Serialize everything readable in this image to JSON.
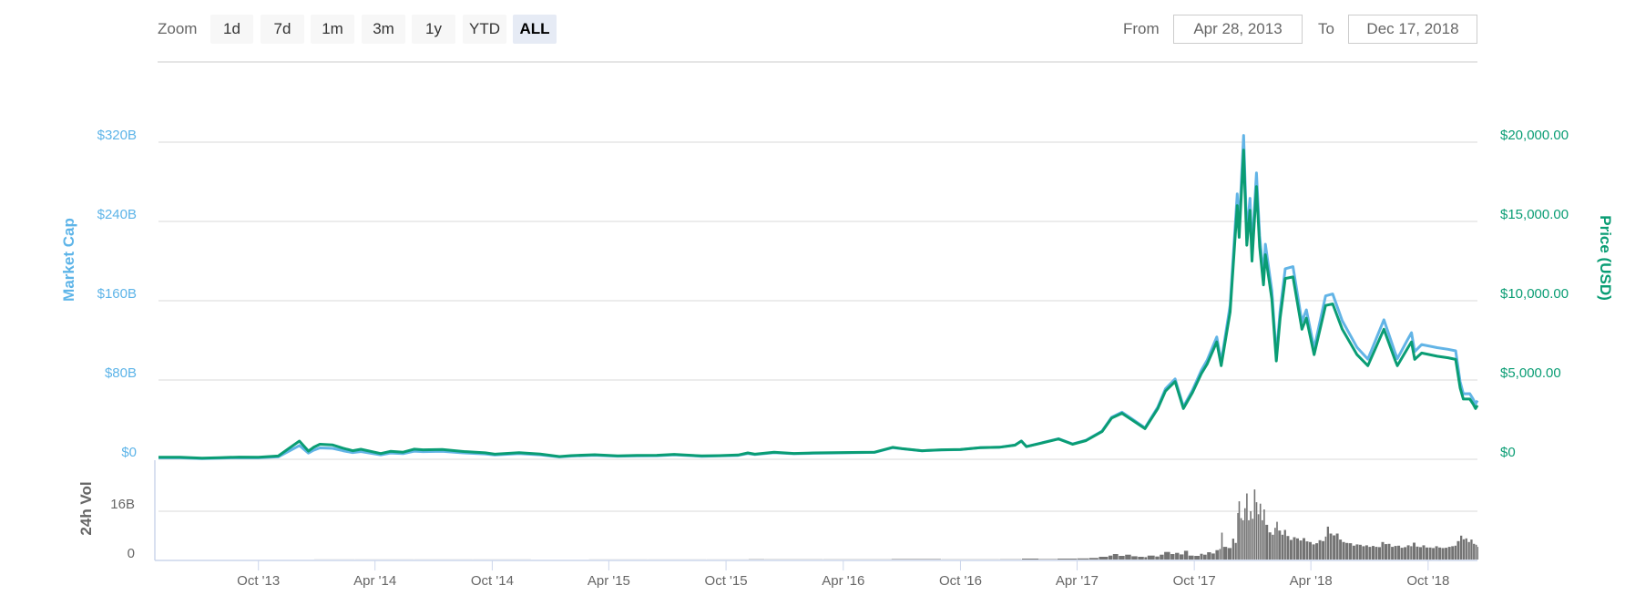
{
  "controls": {
    "zoom_label": "Zoom",
    "zoom_buttons": [
      {
        "label": "1d",
        "selected": false
      },
      {
        "label": "7d",
        "selected": false
      },
      {
        "label": "1m",
        "selected": false
      },
      {
        "label": "3m",
        "selected": false
      },
      {
        "label": "1y",
        "selected": false
      },
      {
        "label": "YTD",
        "selected": false
      },
      {
        "label": "ALL",
        "selected": true
      }
    ],
    "from_label": "From",
    "from_value": "Apr 28, 2013",
    "to_label": "To",
    "to_value": "Dec 17, 2018"
  },
  "colors": {
    "market_cap": "#62b4e6",
    "price": "#0a9d74",
    "volume": "#737373",
    "grid": "#e6e6e6",
    "axis": "#ccd6eb",
    "text": "#666666"
  },
  "chart_data": {
    "type": "line",
    "title": "",
    "xlabel": "",
    "x_range": [
      "2013-04-28",
      "2018-12-17"
    ],
    "grid": true,
    "legend": "none",
    "x_ticks": [
      {
        "date": "2013-10-01",
        "label": "Oct '13"
      },
      {
        "date": "2014-04-01",
        "label": "Apr '14"
      },
      {
        "date": "2014-10-01",
        "label": "Oct '14"
      },
      {
        "date": "2015-04-01",
        "label": "Apr '15"
      },
      {
        "date": "2015-10-01",
        "label": "Oct '15"
      },
      {
        "date": "2016-04-01",
        "label": "Apr '16"
      },
      {
        "date": "2016-10-01",
        "label": "Oct '16"
      },
      {
        "date": "2017-04-01",
        "label": "Apr '17"
      },
      {
        "date": "2017-10-01",
        "label": "Oct '17"
      },
      {
        "date": "2018-04-01",
        "label": "Apr '18"
      },
      {
        "date": "2018-10-01",
        "label": "Oct '18"
      }
    ],
    "y_axes": {
      "left": {
        "label": "Market Cap",
        "unit": "B USD",
        "ylim": [
          0,
          320
        ],
        "ticks": [
          "$0",
          "$80B",
          "$160B",
          "$240B",
          "$320B"
        ]
      },
      "right": {
        "label": "Price (USD)",
        "ylim": [
          0,
          20000
        ],
        "ticks": [
          "$0",
          "$5,000.00",
          "$10,000.00",
          "$15,000.00",
          "$20,000.00"
        ]
      },
      "volume": {
        "label": "24h Vol",
        "unit": "B USD",
        "ylim": [
          0,
          16
        ],
        "ticks": [
          "0",
          "16B"
        ]
      }
    },
    "dates": [
      "2013-04-28",
      "2013-06-01",
      "2013-07-05",
      "2013-08-01",
      "2013-09-01",
      "2013-10-01",
      "2013-11-01",
      "2013-11-18",
      "2013-12-04",
      "2013-12-18",
      "2013-12-26",
      "2014-01-05",
      "2014-01-25",
      "2014-02-10",
      "2014-02-25",
      "2014-03-10",
      "2014-04-10",
      "2014-04-25",
      "2014-05-15",
      "2014-06-01",
      "2014-06-15",
      "2014-07-15",
      "2014-08-18",
      "2014-09-20",
      "2014-10-05",
      "2014-11-12",
      "2014-12-15",
      "2015-01-14",
      "2015-02-01",
      "2015-03-10",
      "2015-04-15",
      "2015-05-15",
      "2015-06-15",
      "2015-07-12",
      "2015-08-24",
      "2015-09-20",
      "2015-10-20",
      "2015-11-04",
      "2015-11-15",
      "2015-12-15",
      "2016-01-15",
      "2016-02-15",
      "2016-03-15",
      "2016-04-15",
      "2016-05-20",
      "2016-06-17",
      "2016-07-01",
      "2016-08-02",
      "2016-09-01",
      "2016-10-01",
      "2016-11-01",
      "2016-12-01",
      "2016-12-25",
      "2017-01-04",
      "2017-01-12",
      "2017-02-01",
      "2017-03-03",
      "2017-03-25",
      "2017-04-15",
      "2017-05-10",
      "2017-05-25",
      "2017-06-10",
      "2017-06-27",
      "2017-07-16",
      "2017-08-05",
      "2017-08-17",
      "2017-09-01",
      "2017-09-14",
      "2017-09-28",
      "2017-10-12",
      "2017-10-21",
      "2017-11-05",
      "2017-11-12",
      "2017-11-26",
      "2017-12-07",
      "2017-12-10",
      "2017-12-17",
      "2017-12-22",
      "2017-12-27",
      "2017-12-30",
      "2018-01-06",
      "2018-01-11",
      "2018-01-17",
      "2018-01-20",
      "2018-01-30",
      "2018-02-06",
      "2018-02-12",
      "2018-02-20",
      "2018-03-04",
      "2018-03-18",
      "2018-03-25",
      "2018-04-06",
      "2018-04-24",
      "2018-05-05",
      "2018-05-20",
      "2018-06-12",
      "2018-06-29",
      "2018-07-24",
      "2018-08-10",
      "2018-08-14",
      "2018-08-30",
      "2018-09-05",
      "2018-09-10",
      "2018-09-21",
      "2018-10-15",
      "2018-11-01",
      "2018-11-13",
      "2018-11-20",
      "2018-11-25",
      "2018-12-05",
      "2018-12-10",
      "2018-12-14",
      "2018-12-17"
    ],
    "series": [
      {
        "name": "Market Cap",
        "axis": "left",
        "type": "line",
        "unit": "B USD",
        "values": [
          1.5,
          1.45,
          0.78,
          1.22,
          1.61,
          1.48,
          2.46,
          8.4,
          13.86,
          6.29,
          9.09,
          11.54,
          11.0,
          8.61,
          6.67,
          7.82,
          4.53,
          6.32,
          5.72,
          8.19,
          7.73,
          8.07,
          6.46,
          5.46,
          4.29,
          5.69,
          4.51,
          2.35,
          3.19,
          4.06,
          3.1,
          3.41,
          3.58,
          4.46,
          3.05,
          3.39,
          3.97,
          5.92,
          4.75,
          6.75,
          5.59,
          6.08,
          6.35,
          6.62,
          6.98,
          11.7,
          10.64,
          8.51,
          9.49,
          9.78,
          11.67,
          12.19,
          14.31,
          18.52,
          12.89,
          15.98,
          20.74,
          15.42,
          19.2,
          28.54,
          42.48,
          47.5,
          40.23,
          31.75,
          52.77,
          71.04,
          81.1,
          53.02,
          69.72,
          89.75,
          99.84,
          123.4,
          98.4,
          155.4,
          267.8,
          234.4,
          326.8,
          226.4,
          263.4,
          209.8,
          289.0,
          225.3,
          185.0,
          217.0,
          170.1,
          104.5,
          150.1,
          192.3,
          194.4,
          138.8,
          150.8,
          111.9,
          164.9,
          166.8,
          139.8,
          112.9,
          101.1,
          140.8,
          108.4,
          101.5,
          120.7,
          127.7,
          108.7,
          115.8,
          112.6,
          111.0,
          109.4,
          78.2,
          66.1,
          66.2,
          61.0,
          55.8,
          59.3
        ]
      },
      {
        "name": "Price (USD)",
        "axis": "right",
        "type": "line",
        "unit": "USD",
        "values": [
          135,
          129,
          68,
          106,
          138,
          125,
          206,
          700,
          1150,
          520,
          750,
          950,
          900,
          700,
          540,
          630,
          360,
          500,
          450,
          640,
          600,
          620,
          490,
          410,
          320,
          420,
          330,
          170,
          230,
          290,
          220,
          240,
          250,
          310,
          210,
          232,
          270,
          400,
          320,
          450,
          370,
          400,
          415,
          430,
          450,
          750,
          680,
          540,
          600,
          615,
          730,
          760,
          890,
          1150,
          800,
          990,
          1280,
          950,
          1180,
          1750,
          2600,
          2900,
          2450,
          1930,
          3200,
          4300,
          4900,
          3200,
          4200,
          5400,
          6000,
          7400,
          5900,
          9300,
          16000,
          14000,
          19500,
          13500,
          15700,
          12500,
          17200,
          13400,
          11000,
          12900,
          10100,
          6200,
          8900,
          11400,
          11500,
          8200,
          8900,
          6600,
          9700,
          9800,
          8200,
          6600,
          5900,
          8200,
          6300,
          5900,
          7000,
          7400,
          6300,
          6700,
          6500,
          6400,
          6300,
          4500,
          3800,
          3800,
          3500,
          3200,
          3400
        ]
      }
    ],
    "volume": {
      "name": "24h Vol",
      "type": "bar",
      "unit": "B USD",
      "dates": [
        "2013-04-28",
        "2013-12-27",
        "2014-03-01",
        "2014-06-01",
        "2014-09-01",
        "2014-12-01",
        "2015-03-01",
        "2015-06-01",
        "2015-09-01",
        "2015-11-05",
        "2015-12-01",
        "2016-03-01",
        "2016-06-15",
        "2016-09-01",
        "2016-12-01",
        "2017-01-05",
        "2017-02-01",
        "2017-03-01",
        "2017-04-01",
        "2017-04-20",
        "2017-05-05",
        "2017-05-20",
        "2017-05-27",
        "2017-06-05",
        "2017-06-15",
        "2017-06-25",
        "2017-07-05",
        "2017-07-15",
        "2017-07-20",
        "2017-08-01",
        "2017-08-08",
        "2017-08-15",
        "2017-08-25",
        "2017-09-01",
        "2017-09-08",
        "2017-09-15",
        "2017-09-22",
        "2017-10-01",
        "2017-10-10",
        "2017-10-15",
        "2017-10-21",
        "2017-10-28",
        "2017-11-03",
        "2017-11-09",
        "2017-11-12",
        "2017-11-15",
        "2017-11-22",
        "2017-11-29",
        "2017-12-03",
        "2017-12-07",
        "2017-12-09",
        "2017-12-12",
        "2017-12-15",
        "2017-12-18",
        "2017-12-21",
        "2017-12-24",
        "2017-12-27",
        "2017-12-30",
        "2018-01-02",
        "2018-01-05",
        "2018-01-08",
        "2018-01-11",
        "2018-01-14",
        "2018-01-17",
        "2018-01-20",
        "2018-01-25",
        "2018-01-30",
        "2018-02-03",
        "2018-02-06",
        "2018-02-09",
        "2018-02-14",
        "2018-02-18",
        "2018-02-22",
        "2018-02-27",
        "2018-03-04",
        "2018-03-09",
        "2018-03-14",
        "2018-03-19",
        "2018-03-24",
        "2018-03-29",
        "2018-04-03",
        "2018-04-08",
        "2018-04-13",
        "2018-04-18",
        "2018-04-23",
        "2018-04-26",
        "2018-04-30",
        "2018-05-05",
        "2018-05-10",
        "2018-05-15",
        "2018-05-20",
        "2018-05-25",
        "2018-05-30",
        "2018-06-05",
        "2018-06-10",
        "2018-06-15",
        "2018-06-20",
        "2018-06-25",
        "2018-06-30",
        "2018-07-05",
        "2018-07-10",
        "2018-07-15",
        "2018-07-20",
        "2018-07-25",
        "2018-07-30",
        "2018-08-04",
        "2018-08-09",
        "2018-08-14",
        "2018-08-19",
        "2018-08-24",
        "2018-08-29",
        "2018-09-03",
        "2018-09-07",
        "2018-09-12",
        "2018-09-17",
        "2018-09-22",
        "2018-09-27",
        "2018-10-02",
        "2018-10-07",
        "2018-10-12",
        "2018-10-17",
        "2018-10-22",
        "2018-10-27",
        "2018-11-01",
        "2018-11-06",
        "2018-11-11",
        "2018-11-15",
        "2018-11-20",
        "2018-11-24",
        "2018-11-28",
        "2018-12-02",
        "2018-12-06",
        "2018-12-10",
        "2018-12-14",
        "2018-12-17"
      ],
      "values": [
        0,
        0.02,
        0.03,
        0.02,
        0.02,
        0.01,
        0.02,
        0.02,
        0.02,
        0.1,
        0.05,
        0.05,
        0.15,
        0.06,
        0.1,
        0.3,
        0.15,
        0.3,
        0.35,
        0.5,
        0.9,
        1.3,
        1.8,
        1.2,
        1.6,
        1.1,
        0.9,
        0.8,
        1.3,
        1.0,
        1.6,
        2.5,
        1.8,
        2.2,
        1.7,
        2.9,
        1.3,
        1.2,
        1.9,
        1.6,
        2.4,
        2.0,
        3.1,
        3.5,
        8.9,
        4.2,
        3.8,
        6.9,
        5.5,
        15.4,
        19.3,
        13.7,
        13.0,
        17.0,
        21.9,
        13.0,
        16.0,
        13.5,
        23.2,
        19.0,
        15.0,
        18.5,
        13.0,
        16.6,
        11.5,
        9.0,
        8.2,
        10.5,
        12.5,
        9.6,
        8.2,
        9.8,
        7.8,
        6.5,
        7.4,
        7.0,
        6.3,
        7.1,
        6.0,
        5.8,
        5.0,
        5.4,
        6.4,
        6.1,
        7.6,
        10.9,
        8.6,
        8.0,
        8.6,
        6.6,
        5.8,
        5.5,
        5.4,
        4.6,
        5.0,
        4.9,
        4.4,
        4.7,
        4.2,
        4.5,
        4.2,
        4.1,
        5.8,
        5.1,
        5.2,
        4.2,
        4.5,
        4.6,
        3.9,
        4.1,
        4.7,
        4.4,
        5.6,
        4.3,
        4.1,
        4.7,
        4.0,
        4.0,
        3.8,
        4.4,
        4.0,
        3.8,
        3.9,
        4.2,
        4.4,
        4.6,
        6.1,
        7.9,
        6.7,
        7.0,
        5.8,
        6.6,
        5.2,
        4.9,
        4.2
      ]
    }
  }
}
